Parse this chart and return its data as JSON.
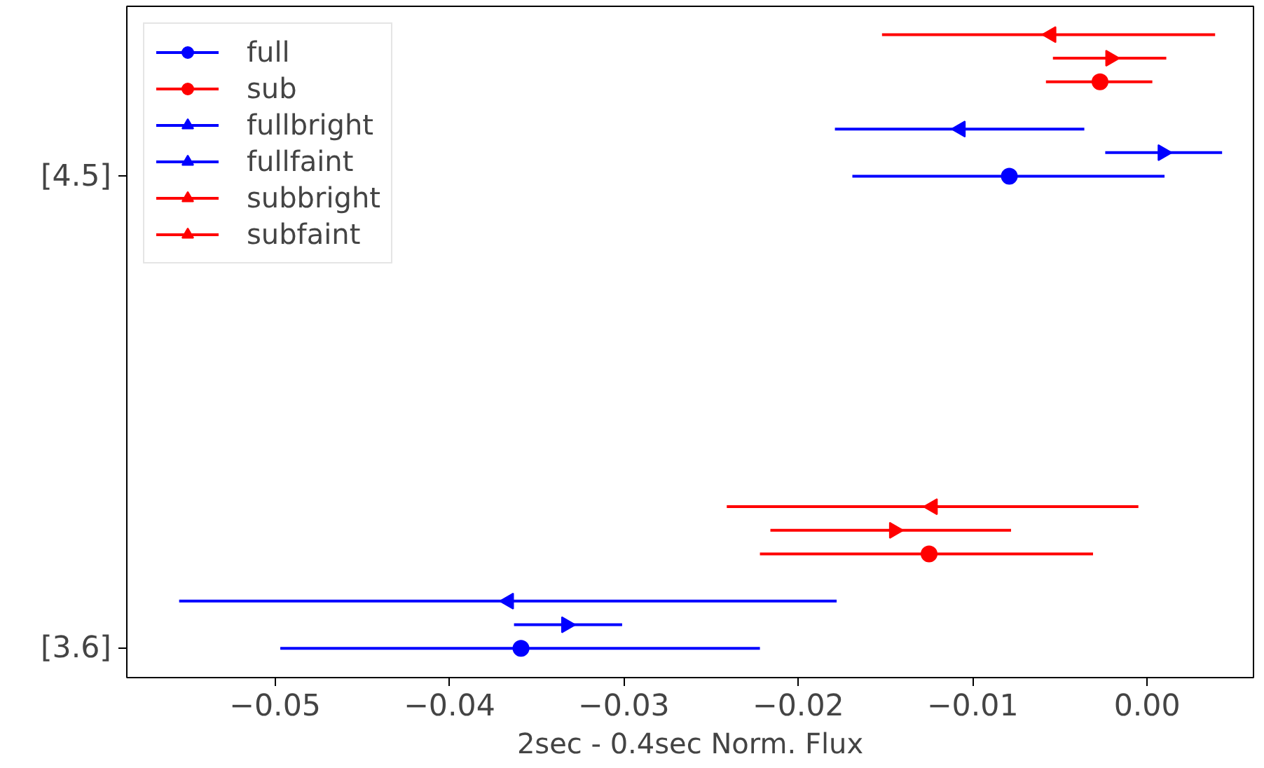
{
  "chart_data": {
    "type": "scatter",
    "orientation": "horizontal",
    "xlabel": "2sec - 0.4sec Norm. Flux",
    "xlim": [
      -0.0585,
      0.0061
    ],
    "xticks": [
      {
        "value": -0.05,
        "label": "−0.05"
      },
      {
        "value": -0.04,
        "label": "−0.04"
      },
      {
        "value": -0.03,
        "label": "−0.03"
      },
      {
        "value": -0.02,
        "label": "−0.02"
      },
      {
        "value": -0.01,
        "label": "−0.01"
      },
      {
        "value": 0.0,
        "label": "0.00"
      }
    ],
    "categories": [
      "[4.5]",
      "[3.6]"
    ],
    "grid": false,
    "legend": "top left",
    "series": [
      {
        "name": "full",
        "color": "#0000ff",
        "marker": "circle",
        "values": [
          -0.0079,
          -0.0359
        ],
        "errors": [
          [
            -0.0169,
            0.001
          ],
          [
            -0.0497,
            -0.0222
          ]
        ]
      },
      {
        "name": "sub",
        "color": "#ff0000",
        "marker": "circle",
        "values": [
          -0.0027,
          -0.0125
        ],
        "errors": [
          [
            -0.0058,
            0.0003
          ],
          [
            -0.0222,
            -0.0031
          ]
        ]
      },
      {
        "name": "fullbright",
        "color": "#0000ff",
        "marker": "triangle_right",
        "values": [
          0.0009,
          -0.0333
        ],
        "errors": [
          [
            -0.0024,
            0.0043
          ],
          [
            -0.0363,
            -0.0301
          ]
        ]
      },
      {
        "name": "fullfaint",
        "color": "#0000ff",
        "marker": "triangle_left",
        "values": [
          -0.0107,
          -0.0366
        ],
        "errors": [
          [
            -0.0179,
            -0.0036
          ],
          [
            -0.0555,
            -0.0178
          ]
        ]
      },
      {
        "name": "subbright",
        "color": "#ff0000",
        "marker": "triangle_right",
        "values": [
          -0.0021,
          -0.0145
        ],
        "errors": [
          [
            -0.0054,
            0.0011
          ],
          [
            -0.0216,
            -0.0078
          ]
        ]
      },
      {
        "name": "subfaint",
        "color": "#ff0000",
        "marker": "triangle_left",
        "values": [
          -0.0055,
          -0.0123
        ],
        "errors": [
          [
            -0.0152,
            0.0039
          ],
          [
            -0.0241,
            -0.0005
          ]
        ]
      }
    ]
  }
}
